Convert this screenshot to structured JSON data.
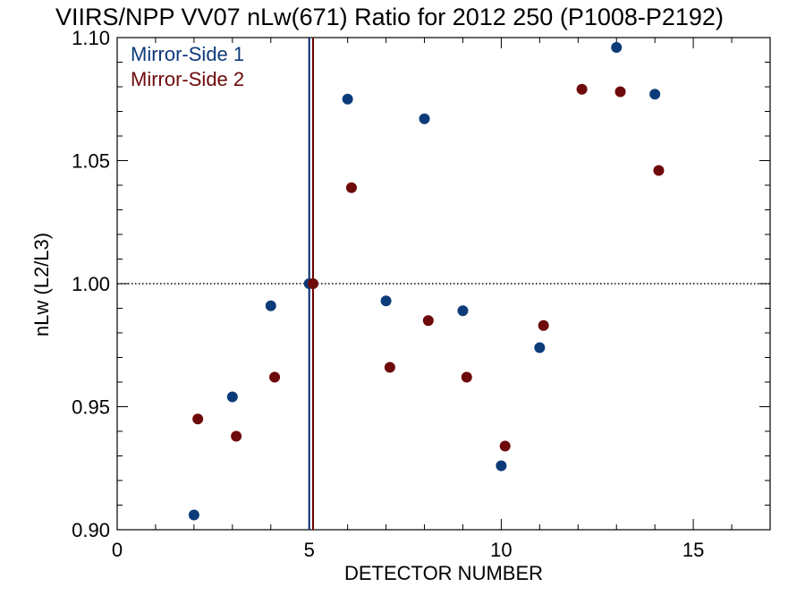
{
  "chart_data": {
    "type": "scatter",
    "title": "VIIRS/NPP VV07 nLw(671) Ratio for 2012 250 (P1008-P2192)",
    "xlabel": "DETECTOR NUMBER",
    "ylabel": "nLw (L2/L3)",
    "xlim": [
      0,
      17
    ],
    "ylim": [
      0.9,
      1.1
    ],
    "x_ticks": [
      0,
      5,
      10,
      15
    ],
    "x_tick_labels": [
      "0",
      "5",
      "10",
      "15"
    ],
    "y_ticks": [
      0.9,
      0.95,
      1.0,
      1.05,
      1.1
    ],
    "y_tick_labels": [
      "0.90",
      "0.95",
      "1.00",
      "1.05",
      "1.10"
    ],
    "reference_line": {
      "y": 1.0,
      "style": "dotted"
    },
    "vertical_markers": [
      {
        "x": 5.0,
        "color": "#002a6e"
      },
      {
        "x": 5.1,
        "color": "#6e0000"
      }
    ],
    "legend_position": "top-left",
    "grid": false,
    "series": [
      {
        "name": "Mirror-Side 1",
        "color": "#0d3b7a",
        "points": [
          {
            "x": 2,
            "y": 0.906
          },
          {
            "x": 3,
            "y": 0.954
          },
          {
            "x": 4,
            "y": 0.991
          },
          {
            "x": 5,
            "y": 1.0
          },
          {
            "x": 6,
            "y": 1.075
          },
          {
            "x": 7,
            "y": 0.993
          },
          {
            "x": 8,
            "y": 1.067
          },
          {
            "x": 9,
            "y": 0.989
          },
          {
            "x": 10,
            "y": 0.926
          },
          {
            "x": 11,
            "y": 0.974
          },
          {
            "x": 13,
            "y": 1.096
          },
          {
            "x": 14,
            "y": 1.077
          }
        ]
      },
      {
        "name": "Mirror-Side 2",
        "color": "#6e0a0a",
        "points": [
          {
            "x": 2.1,
            "y": 0.945
          },
          {
            "x": 3.1,
            "y": 0.938
          },
          {
            "x": 4.1,
            "y": 0.962
          },
          {
            "x": 5.1,
            "y": 1.0
          },
          {
            "x": 6.1,
            "y": 1.039
          },
          {
            "x": 7.1,
            "y": 0.966
          },
          {
            "x": 8.1,
            "y": 0.985
          },
          {
            "x": 9.1,
            "y": 0.962
          },
          {
            "x": 10.1,
            "y": 0.934
          },
          {
            "x": 11.1,
            "y": 0.983
          },
          {
            "x": 12.1,
            "y": 1.079
          },
          {
            "x": 13.1,
            "y": 1.078
          },
          {
            "x": 14.1,
            "y": 1.046
          }
        ]
      }
    ]
  }
}
